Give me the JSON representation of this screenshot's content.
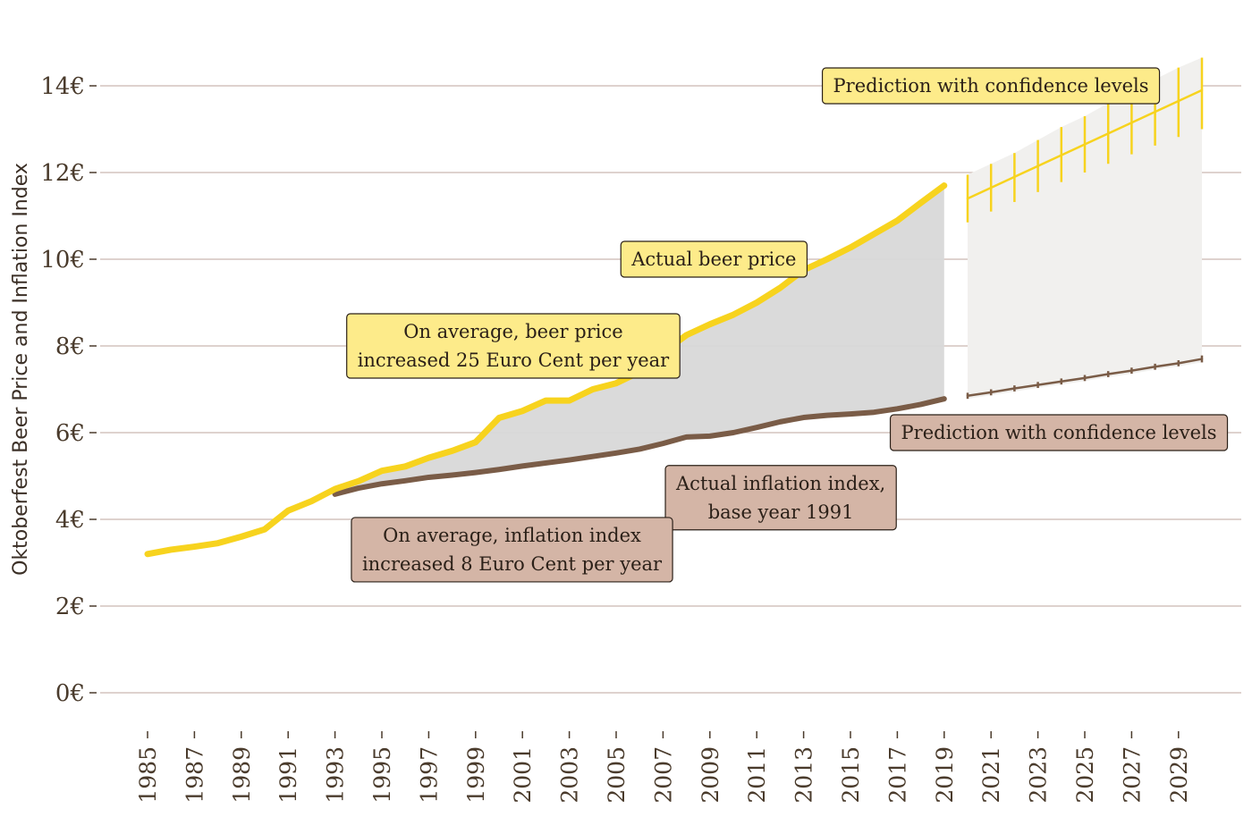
{
  "chart_data": {
    "type": "line",
    "title": "",
    "ylabel": "Oktoberfest Beer Price and Inflation Index",
    "xlabel": "",
    "ylim": [
      0,
      14.5
    ],
    "y_ticks": [
      0,
      2,
      4,
      6,
      8,
      10,
      12,
      14
    ],
    "y_tick_suffix": "€",
    "x_ticks": [
      1985,
      1987,
      1989,
      1991,
      1993,
      1995,
      1997,
      1999,
      2001,
      2003,
      2005,
      2007,
      2009,
      2011,
      2013,
      2015,
      2017,
      2019,
      2021,
      2023,
      2025,
      2027,
      2029
    ],
    "grid": true,
    "series": [
      {
        "name": "Actual beer price",
        "color": "#f7d31e",
        "x": [
          1985,
          1986,
          1987,
          1988,
          1989,
          1990,
          1991,
          1992,
          1993,
          1994,
          1995,
          1996,
          1997,
          1998,
          1999,
          2000,
          2001,
          2002,
          2003,
          2004,
          2005,
          2006,
          2007,
          2008,
          2009,
          2010,
          2011,
          2012,
          2013,
          2014,
          2015,
          2016,
          2017,
          2018,
          2019
        ],
        "values": [
          3.2,
          3.3,
          3.37,
          3.45,
          3.6,
          3.77,
          4.2,
          4.42,
          4.7,
          4.88,
          5.12,
          5.22,
          5.42,
          5.58,
          5.78,
          6.34,
          6.5,
          6.74,
          6.74,
          7.0,
          7.14,
          7.4,
          7.85,
          8.25,
          8.5,
          8.72,
          9.0,
          9.34,
          9.75,
          10.0,
          10.27,
          10.58,
          10.89,
          11.3,
          11.7
        ]
      },
      {
        "name": "Actual inflation index, base year 1991",
        "color": "#7a5c47",
        "x": [
          1993,
          1994,
          1995,
          1996,
          1997,
          1998,
          1999,
          2000,
          2001,
          2002,
          2003,
          2004,
          2005,
          2006,
          2007,
          2008,
          2009,
          2010,
          2011,
          2012,
          2013,
          2014,
          2015,
          2016,
          2017,
          2018,
          2019
        ],
        "values": [
          4.58,
          4.72,
          4.82,
          4.89,
          4.97,
          5.02,
          5.08,
          5.15,
          5.23,
          5.3,
          5.37,
          5.45,
          5.53,
          5.62,
          5.75,
          5.9,
          5.92,
          6.0,
          6.12,
          6.25,
          6.35,
          6.4,
          6.43,
          6.47,
          6.55,
          6.65,
          6.78
        ]
      },
      {
        "name": "Prediction with confidence levels",
        "color": "#f7d31e",
        "x": [
          2020,
          2021,
          2022,
          2023,
          2024,
          2025,
          2026,
          2027,
          2028,
          2029,
          2030
        ],
        "values": [
          11.4,
          11.65,
          11.9,
          12.15,
          12.4,
          12.65,
          12.9,
          13.15,
          13.4,
          13.65,
          13.9
        ],
        "lower": [
          10.85,
          11.1,
          11.32,
          11.55,
          11.78,
          12.0,
          12.2,
          12.42,
          12.62,
          12.82,
          13.0
        ],
        "upper": [
          11.95,
          12.2,
          12.45,
          12.75,
          13.05,
          13.3,
          13.6,
          13.88,
          14.15,
          14.42,
          14.65
        ]
      },
      {
        "name": "Prediction with confidence levels",
        "color": "#7a5c47",
        "x": [
          2020,
          2021,
          2022,
          2023,
          2024,
          2025,
          2026,
          2027,
          2028,
          2029,
          2030
        ],
        "values": [
          6.85,
          6.93,
          7.02,
          7.1,
          7.18,
          7.26,
          7.35,
          7.43,
          7.52,
          7.6,
          7.7
        ],
        "lower": [
          6.78,
          6.86,
          6.95,
          7.03,
          7.11,
          7.19,
          7.28,
          7.36,
          7.45,
          7.53,
          7.62
        ],
        "upper": [
          6.92,
          7.0,
          7.09,
          7.17,
          7.25,
          7.33,
          7.42,
          7.5,
          7.59,
          7.67,
          7.78
        ]
      }
    ],
    "annotations": [
      {
        "lines": [
          "Prediction with confidence levels"
        ],
        "x": 2013.8,
        "y": 14,
        "fill": "#fdeb8a"
      },
      {
        "lines": [
          "Actual beer price"
        ],
        "x": 2005.2,
        "y": 10,
        "fill": "#fdeb8a"
      },
      {
        "lines": [
          "On average, beer price",
          "increased 25 Euro Cent per year"
        ],
        "x": 1993.5,
        "y": 8.0,
        "fill": "#fdeb8a"
      },
      {
        "lines": [
          "Prediction with confidence levels"
        ],
        "x": 2016.7,
        "y": 6.0,
        "fill": "#d4b5a6"
      },
      {
        "lines": [
          "Actual inflation index,",
          "base year 1991"
        ],
        "x": 2007.1,
        "y": 4.5,
        "fill": "#d4b5a6"
      },
      {
        "lines": [
          "On average, inflation index",
          "increased 8 Euro Cent per year"
        ],
        "x": 1993.7,
        "y": 3.3,
        "fill": "#d4b5a6"
      }
    ]
  }
}
